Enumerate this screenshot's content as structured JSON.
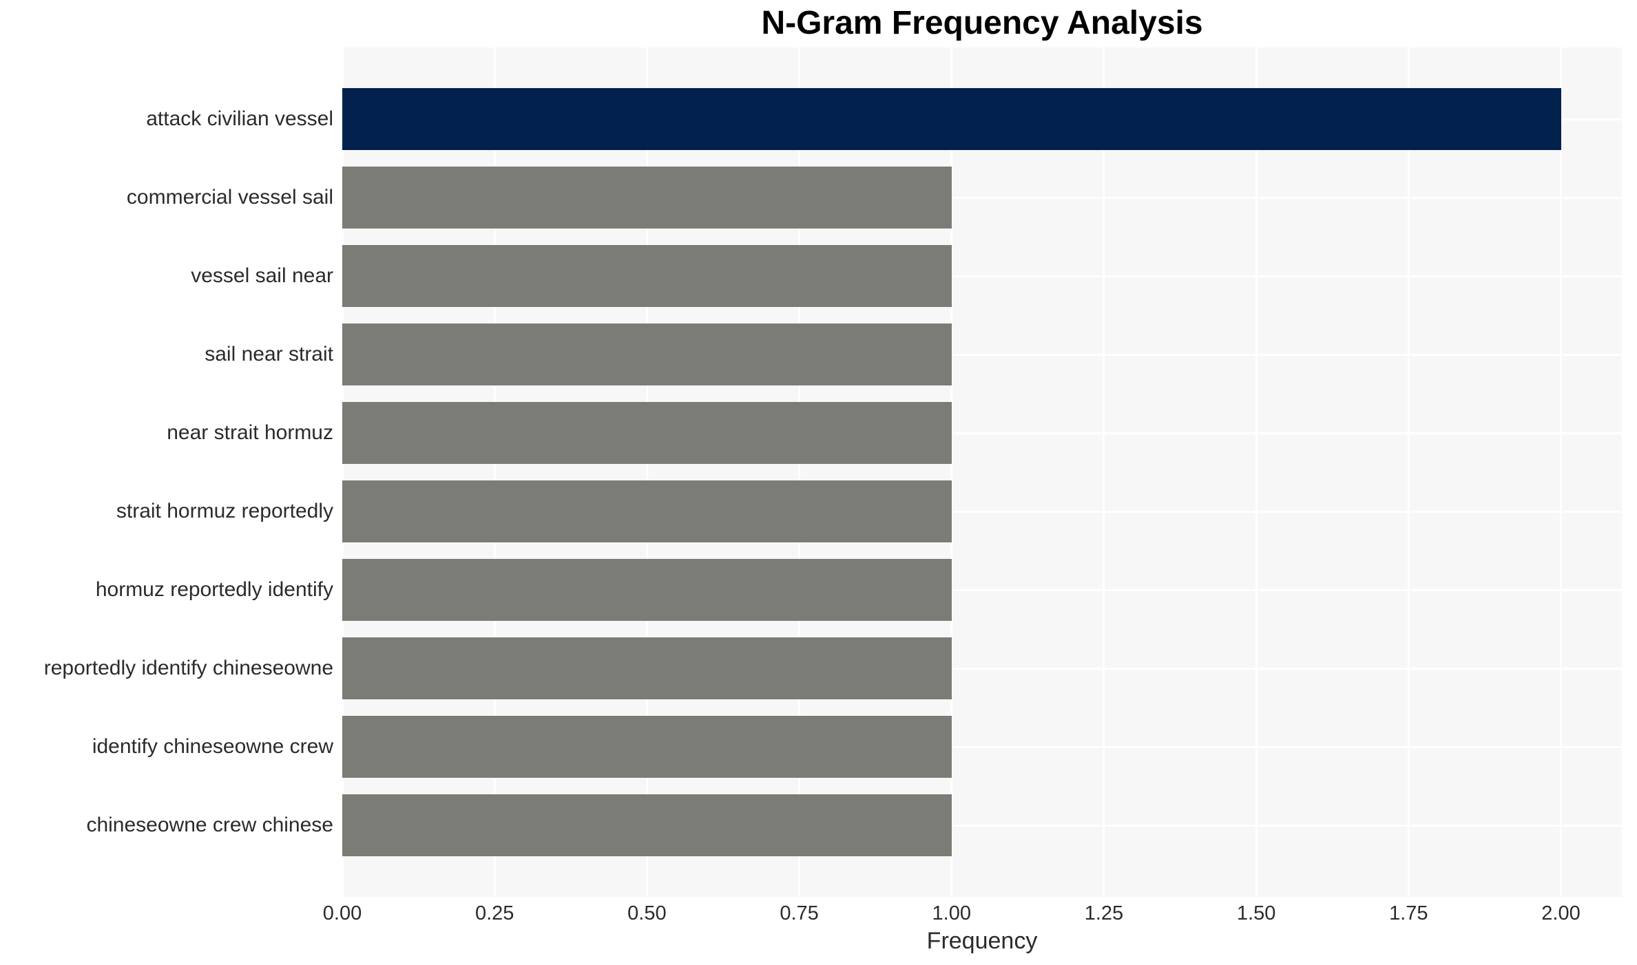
{
  "title": "N-Gram Frequency Analysis",
  "x_axis_label": "Frequency",
  "chart_data": {
    "type": "bar",
    "orientation": "horizontal",
    "title": "N-Gram Frequency Analysis",
    "xlabel": "Frequency",
    "ylabel": "",
    "categories": [
      "attack civilian vessel",
      "commercial vessel sail",
      "vessel sail near",
      "sail near strait",
      "near strait hormuz",
      "strait hormuz reportedly",
      "hormuz reportedly identify",
      "reportedly identify chineseowne",
      "identify chineseowne crew",
      "chineseowne crew chinese"
    ],
    "values": [
      2.0,
      1.0,
      1.0,
      1.0,
      1.0,
      1.0,
      1.0,
      1.0,
      1.0,
      1.0
    ],
    "xlim": [
      0,
      2.1
    ],
    "xticks": [
      0,
      0.25,
      0.5,
      0.75,
      1.0,
      1.25,
      1.5,
      1.75,
      2.0
    ],
    "xtick_labels": [
      "0.00",
      "0.25",
      "0.50",
      "0.75",
      "1.00",
      "1.25",
      "1.50",
      "1.75",
      "2.00"
    ],
    "grid": true,
    "legend": null,
    "colors": {
      "bar_highlight": "#02214c",
      "bar_default": "#7c7c76",
      "plot_background": "#f7f7f7",
      "gridline": "#ffffff",
      "tick_text": "#2b2b2b",
      "title_text": "#000000"
    },
    "bar_colors": [
      "#02214c",
      "#7c7c76",
      "#7c7c76",
      "#7c7c76",
      "#7c7c76",
      "#7c7c76",
      "#7c7c76",
      "#7c7c76",
      "#7c7c76",
      "#7c7c76"
    ]
  }
}
